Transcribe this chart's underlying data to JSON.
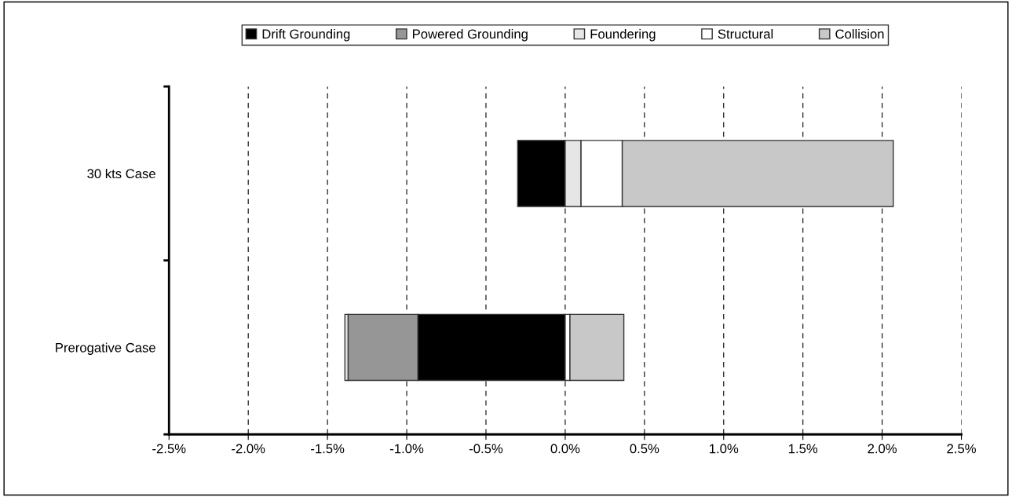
{
  "chart_data": {
    "type": "bar",
    "orientation": "horizontal",
    "stacked": true,
    "categories": [
      "30 kts Case",
      "Prerogative Case"
    ],
    "series": [
      {
        "name": "Drift Grounding",
        "color": "#000000",
        "values": [
          -0.3,
          -0.93
        ]
      },
      {
        "name": "Powered Grounding",
        "color": "#969696",
        "values": [
          0,
          -0.44
        ]
      },
      {
        "name": "Foundering",
        "color": "#e6e6e6",
        "values": [
          0.1,
          -0.02
        ]
      },
      {
        "name": "Structural",
        "color": "#ffffff",
        "values": [
          0.26,
          0.03
        ]
      },
      {
        "name": "Collision",
        "color": "#c8c8c8",
        "values": [
          1.71,
          0.34
        ]
      }
    ],
    "xlim": [
      -2.5,
      2.5
    ],
    "xticks": [
      {
        "value": -2.5,
        "label": "-2.5%"
      },
      {
        "value": -2.0,
        "label": "-2.0%"
      },
      {
        "value": -1.5,
        "label": "-1.5%"
      },
      {
        "value": -1.0,
        "label": "-1.0%"
      },
      {
        "value": -0.5,
        "label": "-0.5%"
      },
      {
        "value": 0.0,
        "label": "0.0%"
      },
      {
        "value": 0.5,
        "label": "0.5%"
      },
      {
        "value": 1.0,
        "label": "1.0%"
      },
      {
        "value": 1.5,
        "label": "1.5%"
      },
      {
        "value": 2.0,
        "label": "2.0%"
      },
      {
        "value": 2.5,
        "label": "2.5%"
      }
    ],
    "grid": "x",
    "legend": "top"
  }
}
